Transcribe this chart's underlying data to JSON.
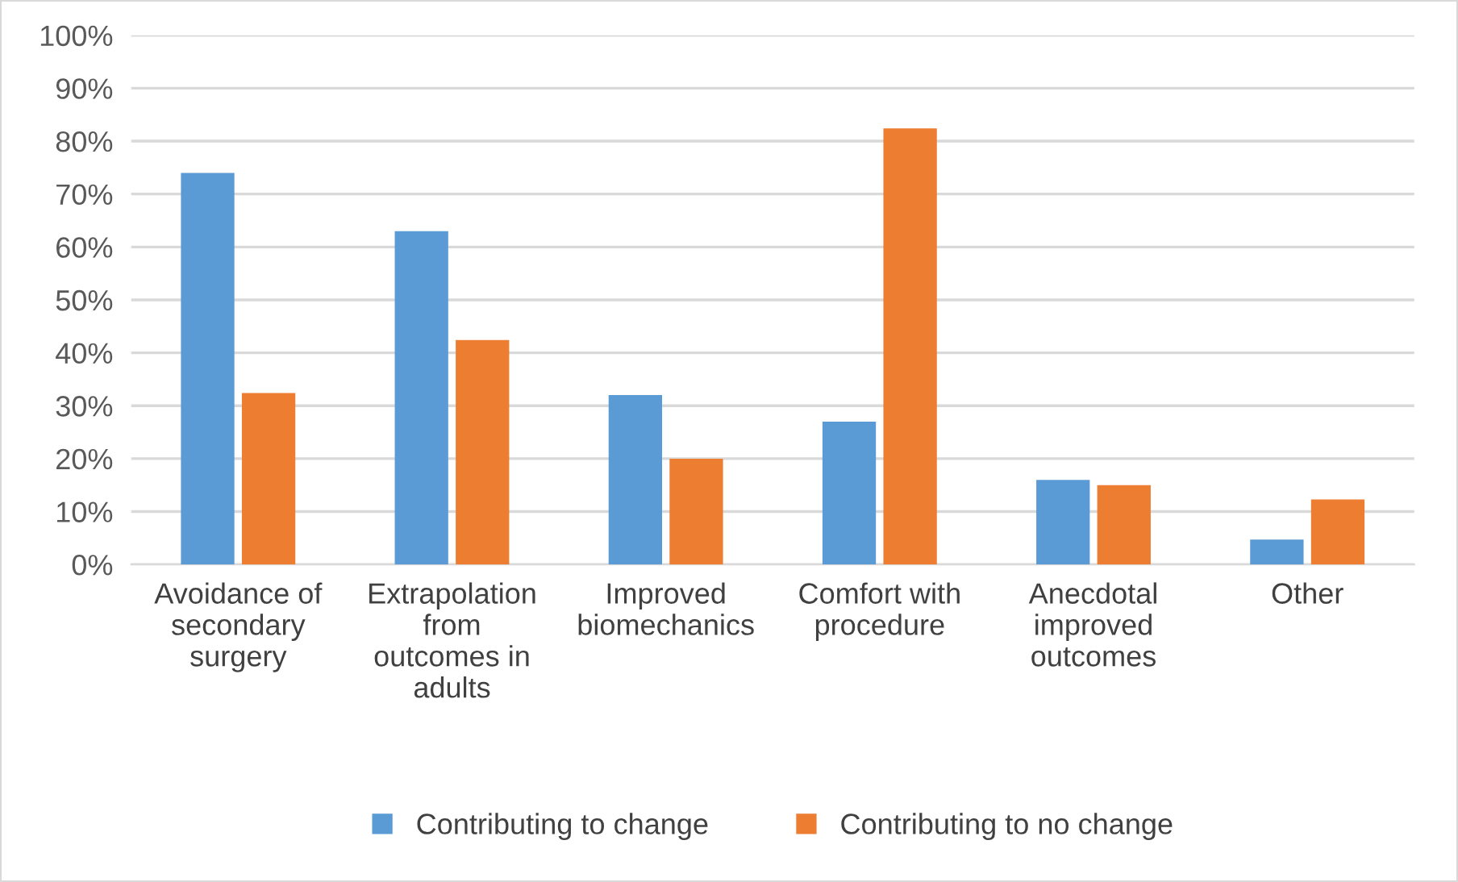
{
  "chart_data": {
    "type": "bar",
    "categories": [
      "Avoidance of\nsecondary\nsurgery",
      "Extrapolation\nfrom\noutcomes in\nadults",
      "Improved\nbiomechanics",
      "Comfort with\nprocedure",
      "Anecdotal\nimproved\noutcomes",
      "Other"
    ],
    "series": [
      {
        "name": "Contributing to change",
        "color": "#5b9bd5",
        "values": [
          74,
          63,
          32,
          27,
          16,
          4.7
        ]
      },
      {
        "name": "Contributing to no change",
        "color": "#ed7d31",
        "values": [
          32.4,
          42.4,
          20,
          82.4,
          15,
          12.3
        ]
      }
    ],
    "ylim": [
      0,
      100
    ],
    "yticks": [
      {
        "value": 0,
        "label": "0%"
      },
      {
        "value": 10,
        "label": "10%"
      },
      {
        "value": 20,
        "label": "20%"
      },
      {
        "value": 30,
        "label": "30%"
      },
      {
        "value": 40,
        "label": "40%"
      },
      {
        "value": 50,
        "label": "50%"
      },
      {
        "value": 60,
        "label": "60%"
      },
      {
        "value": 70,
        "label": "70%"
      },
      {
        "value": 80,
        "label": "80%"
      },
      {
        "value": 90,
        "label": "90%"
      },
      {
        "value": 100,
        "label": "100%"
      }
    ],
    "grid": "y",
    "legend": "bottom"
  }
}
